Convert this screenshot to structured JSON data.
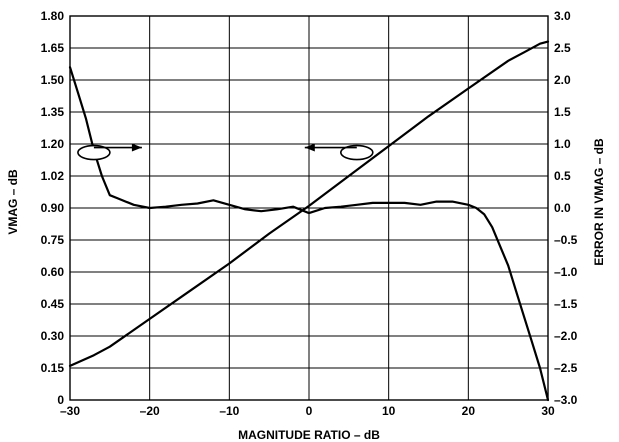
{
  "chart_data": {
    "type": "line",
    "title": "",
    "xlabel": "MAGNITUDE RATIO – dB",
    "ylabel_left": "VMAG – dB",
    "ylabel_right": "ERROR IN VMAG – dB",
    "xlim": [
      -30,
      30
    ],
    "ylim_left": [
      0,
      1.8
    ],
    "ylim_right": [
      -3.0,
      3.0
    ],
    "grid": true,
    "x_ticks": [
      "–30",
      "–20",
      "–10",
      "0",
      "10",
      "20",
      "30"
    ],
    "y_left_ticks": [
      "0",
      "0.15",
      "0.30",
      "0.45",
      "0.60",
      "0.75",
      "0.90",
      "1.02",
      "1.20",
      "1.35",
      "1.50",
      "1.65",
      "1.80"
    ],
    "y_right_ticks": [
      "3.0",
      "2.5",
      "2.0",
      "1.5",
      "1.0",
      "0.5",
      "0.0",
      "–0.5",
      "–1.0",
      "–1.5",
      "–2.0",
      "–2.5",
      "–3.0"
    ],
    "series": [
      {
        "axis": "left",
        "x": [
          -30,
          -27,
          -25,
          -20,
          -15,
          -10,
          -5,
          0,
          5,
          10,
          15,
          20,
          25,
          27,
          29,
          30
        ],
        "y": [
          0.16,
          0.21,
          0.25,
          0.38,
          0.51,
          0.64,
          0.78,
          0.91,
          1.05,
          1.19,
          1.33,
          1.46,
          1.59,
          1.63,
          1.67,
          1.68
        ]
      },
      {
        "axis": "right",
        "x": [
          -30,
          -29,
          -28,
          -27,
          -26,
          -25,
          -24,
          -22,
          -20,
          -18,
          -16,
          -14,
          -12,
          -10,
          -8,
          -6,
          -4,
          -2,
          0,
          2,
          4,
          6,
          8,
          10,
          12,
          14,
          16,
          18,
          20,
          21,
          22,
          23,
          24,
          25,
          26,
          27,
          28,
          29,
          30
        ],
        "y": [
          2.2,
          1.8,
          1.4,
          0.9,
          0.5,
          0.2,
          0.15,
          0.05,
          0.0,
          0.02,
          0.05,
          0.07,
          0.12,
          0.05,
          -0.02,
          -0.05,
          -0.02,
          0.02,
          -0.08,
          0.0,
          0.02,
          0.05,
          0.08,
          0.08,
          0.08,
          0.05,
          0.1,
          0.1,
          0.05,
          0.0,
          -0.1,
          -0.3,
          -0.6,
          -0.9,
          -1.3,
          -1.7,
          -2.1,
          -2.5,
          -3.0
        ]
      }
    ],
    "annotations": [
      {
        "shape": "ellipse with arrow",
        "x": -27,
        "y_left": 1.16,
        "points_to": "right axis"
      },
      {
        "shape": "ellipse with arrow",
        "x": 6,
        "y_left": 1.16,
        "points_to": "left axis"
      }
    ]
  }
}
